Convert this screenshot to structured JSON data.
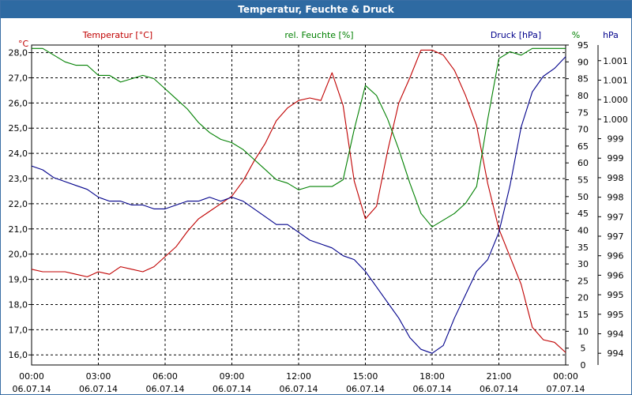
{
  "window": {
    "title": "Temperatur, Feuchte & Druck"
  },
  "chart_data": {
    "type": "line",
    "title": "Temperatur, Feuchte & Druck",
    "x_ticks": [
      {
        "hour": 0,
        "time": "00:00",
        "date": "06.07.14"
      },
      {
        "hour": 3,
        "time": "03:00",
        "date": "06.07.14"
      },
      {
        "hour": 6,
        "time": "06:00",
        "date": "06.07.14"
      },
      {
        "hour": 9,
        "time": "09:00",
        "date": "06.07.14"
      },
      {
        "hour": 12,
        "time": "12:00",
        "date": "06.07.14"
      },
      {
        "hour": 15,
        "time": "15:00",
        "date": "06.07.14"
      },
      {
        "hour": 18,
        "time": "18:00",
        "date": "06.07.14"
      },
      {
        "hour": 21,
        "time": "21:00",
        "date": "06.07.14"
      },
      {
        "hour": 24,
        "time": "00:00",
        "date": "07.07.14"
      }
    ],
    "xlim": [
      0,
      24
    ],
    "axes": {
      "temperature": {
        "unit_label": "°C",
        "legend": "Temperatur [°C]",
        "color": "#c00000",
        "min": 15.6,
        "max": 28.3,
        "ticks": [
          {
            "v": 16,
            "label": "16,0"
          },
          {
            "v": 17,
            "label": "17,0"
          },
          {
            "v": 18,
            "label": "18,0"
          },
          {
            "v": 19,
            "label": "19,0"
          },
          {
            "v": 20,
            "label": "20,0"
          },
          {
            "v": 21,
            "label": "21,0"
          },
          {
            "v": 22,
            "label": "22,0"
          },
          {
            "v": 23,
            "label": "23,0"
          },
          {
            "v": 24,
            "label": "24,0"
          },
          {
            "v": 25,
            "label": "25,0"
          },
          {
            "v": 26,
            "label": "26,0"
          },
          {
            "v": 27,
            "label": "27,0"
          },
          {
            "v": 28,
            "label": "28,0"
          }
        ]
      },
      "humidity": {
        "unit_label": "%",
        "legend": "rel. Feuchte [%]",
        "color": "#008000",
        "min": 0,
        "max": 95,
        "ticks": [
          {
            "v": 0,
            "label": "0"
          },
          {
            "v": 5,
            "label": "5"
          },
          {
            "v": 10,
            "label": "10"
          },
          {
            "v": 15,
            "label": "15"
          },
          {
            "v": 20,
            "label": "20"
          },
          {
            "v": 25,
            "label": "25"
          },
          {
            "v": 30,
            "label": "30"
          },
          {
            "v": 35,
            "label": "35"
          },
          {
            "v": 40,
            "label": "40"
          },
          {
            "v": 45,
            "label": "45"
          },
          {
            "v": 50,
            "label": "50"
          },
          {
            "v": 55,
            "label": "55"
          },
          {
            "v": 60,
            "label": "60"
          },
          {
            "v": 65,
            "label": "65"
          },
          {
            "v": 70,
            "label": "70"
          },
          {
            "v": 75,
            "label": "75"
          },
          {
            "v": 80,
            "label": "80"
          },
          {
            "v": 85,
            "label": "85"
          },
          {
            "v": 90,
            "label": "90"
          },
          {
            "v": 95,
            "label": "95"
          }
        ]
      },
      "pressure": {
        "unit_label": "hPa",
        "legend": "Druck [hPa]",
        "color": "#00008b",
        "min": 993.4,
        "max": 1001.6,
        "ticks": [
          {
            "v": 993.7,
            "label": "994"
          },
          {
            "v": 994.2,
            "label": "994"
          },
          {
            "v": 994.7,
            "label": "995"
          },
          {
            "v": 995.2,
            "label": "995"
          },
          {
            "v": 995.7,
            "label": "996"
          },
          {
            "v": 996.2,
            "label": "996"
          },
          {
            "v": 996.7,
            "label": "997"
          },
          {
            "v": 997.2,
            "label": "997"
          },
          {
            "v": 997.7,
            "label": "998"
          },
          {
            "v": 998.2,
            "label": "998"
          },
          {
            "v": 998.7,
            "label": "999"
          },
          {
            "v": 999.2,
            "label": "999"
          },
          {
            "v": 999.7,
            "label": "1.000"
          },
          {
            "v": 1000.2,
            "label": "1.000"
          },
          {
            "v": 1000.7,
            "label": "1.001"
          },
          {
            "v": 1001.2,
            "label": "1.001"
          }
        ]
      }
    },
    "series": [
      {
        "name": "Temperatur [°C]",
        "axis": "temperature",
        "color": "#c00000",
        "points": [
          [
            0,
            19.4
          ],
          [
            0.5,
            19.3
          ],
          [
            1,
            19.3
          ],
          [
            1.5,
            19.3
          ],
          [
            2,
            19.2
          ],
          [
            2.5,
            19.1
          ],
          [
            3,
            19.3
          ],
          [
            3.5,
            19.2
          ],
          [
            4,
            19.5
          ],
          [
            4.5,
            19.4
          ],
          [
            5,
            19.3
          ],
          [
            5.5,
            19.5
          ],
          [
            6,
            19.9
          ],
          [
            6.5,
            20.3
          ],
          [
            7,
            20.9
          ],
          [
            7.5,
            21.4
          ],
          [
            8,
            21.7
          ],
          [
            8.5,
            22.0
          ],
          [
            9,
            22.3
          ],
          [
            9.5,
            22.9
          ],
          [
            10,
            23.7
          ],
          [
            10.5,
            24.4
          ],
          [
            11,
            25.3
          ],
          [
            11.5,
            25.8
          ],
          [
            12,
            26.1
          ],
          [
            12.5,
            26.2
          ],
          [
            13,
            26.1
          ],
          [
            13.5,
            27.2
          ],
          [
            14,
            25.9
          ],
          [
            14.5,
            22.9
          ],
          [
            15,
            21.4
          ],
          [
            15.5,
            21.9
          ],
          [
            16,
            24.1
          ],
          [
            16.5,
            26.0
          ],
          [
            17,
            27.0
          ],
          [
            17.5,
            28.1
          ],
          [
            18,
            28.1
          ],
          [
            18.5,
            27.9
          ],
          [
            19,
            27.3
          ],
          [
            19.5,
            26.3
          ],
          [
            20,
            25.1
          ],
          [
            20.5,
            22.8
          ],
          [
            21,
            21.0
          ],
          [
            21.5,
            19.9
          ],
          [
            22,
            18.8
          ],
          [
            22.5,
            17.1
          ],
          [
            23,
            16.6
          ],
          [
            23.5,
            16.5
          ],
          [
            24,
            16.1
          ]
        ]
      },
      {
        "name": "rel. Feuchte [%]",
        "axis": "humidity",
        "color": "#008000",
        "points": [
          [
            0,
            94
          ],
          [
            0.5,
            94
          ],
          [
            1,
            92
          ],
          [
            1.5,
            90
          ],
          [
            2,
            89
          ],
          [
            2.5,
            89
          ],
          [
            3,
            86
          ],
          [
            3.5,
            86
          ],
          [
            4,
            84
          ],
          [
            4.5,
            85
          ],
          [
            5,
            86
          ],
          [
            5.5,
            85
          ],
          [
            6,
            82
          ],
          [
            6.5,
            79
          ],
          [
            7,
            76
          ],
          [
            7.5,
            72
          ],
          [
            8,
            69
          ],
          [
            8.5,
            67
          ],
          [
            9,
            66
          ],
          [
            9.5,
            64
          ],
          [
            10,
            61
          ],
          [
            10.5,
            58
          ],
          [
            11,
            55
          ],
          [
            11.5,
            54
          ],
          [
            12,
            52
          ],
          [
            12.5,
            53
          ],
          [
            13,
            53
          ],
          [
            13.5,
            53
          ],
          [
            14,
            55
          ],
          [
            14.5,
            70
          ],
          [
            15,
            83
          ],
          [
            15.5,
            80
          ],
          [
            16,
            73
          ],
          [
            16.5,
            64
          ],
          [
            17,
            54
          ],
          [
            17.5,
            45
          ],
          [
            18,
            41
          ],
          [
            18.5,
            43
          ],
          [
            19,
            45
          ],
          [
            19.5,
            48
          ],
          [
            20,
            53
          ],
          [
            20.5,
            73
          ],
          [
            21,
            91
          ],
          [
            21.5,
            93
          ],
          [
            22,
            92
          ],
          [
            22.5,
            94
          ],
          [
            23,
            94
          ],
          [
            23.5,
            94
          ],
          [
            24,
            94
          ]
        ]
      },
      {
        "name": "Druck [hPa]",
        "axis": "pressure",
        "color": "#00008b",
        "points": [
          [
            0,
            998.5
          ],
          [
            0.5,
            998.4
          ],
          [
            1,
            998.2
          ],
          [
            1.5,
            998.1
          ],
          [
            2,
            998.0
          ],
          [
            2.5,
            997.9
          ],
          [
            3,
            997.7
          ],
          [
            3.5,
            997.6
          ],
          [
            4,
            997.6
          ],
          [
            4.5,
            997.5
          ],
          [
            5,
            997.5
          ],
          [
            5.5,
            997.4
          ],
          [
            6,
            997.4
          ],
          [
            6.5,
            997.5
          ],
          [
            7,
            997.6
          ],
          [
            7.5,
            997.6
          ],
          [
            8,
            997.7
          ],
          [
            8.5,
            997.6
          ],
          [
            9,
            997.7
          ],
          [
            9.5,
            997.6
          ],
          [
            10,
            997.4
          ],
          [
            10.5,
            997.2
          ],
          [
            11,
            997.0
          ],
          [
            11.5,
            997.0
          ],
          [
            12,
            996.8
          ],
          [
            12.5,
            996.6
          ],
          [
            13,
            996.5
          ],
          [
            13.5,
            996.4
          ],
          [
            14,
            996.2
          ],
          [
            14.5,
            996.1
          ],
          [
            15,
            995.8
          ],
          [
            15.5,
            995.4
          ],
          [
            16,
            995.0
          ],
          [
            16.5,
            994.6
          ],
          [
            17,
            994.1
          ],
          [
            17.5,
            993.8
          ],
          [
            18,
            993.7
          ],
          [
            18.5,
            993.9
          ],
          [
            19,
            994.6
          ],
          [
            19.5,
            995.2
          ],
          [
            20,
            995.8
          ],
          [
            20.5,
            996.1
          ],
          [
            21,
            996.8
          ],
          [
            21.5,
            998.0
          ],
          [
            22,
            999.5
          ],
          [
            22.5,
            1000.4
          ],
          [
            23,
            1000.8
          ],
          [
            23.5,
            1001.0
          ],
          [
            24,
            1001.3
          ]
        ]
      }
    ]
  }
}
